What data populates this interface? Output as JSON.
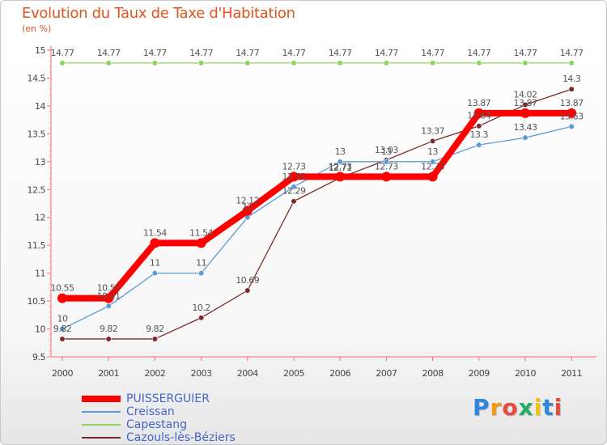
{
  "title": "Evolution du Taux de Taxe d'Habitation",
  "subtitle": "(en %)",
  "chart_data": {
    "type": "line",
    "x": [
      "2000",
      "2001",
      "2002",
      "2003",
      "2004",
      "2005",
      "2006",
      "2007",
      "2008",
      "2009",
      "2010",
      "2011"
    ],
    "ylim": [
      9.5,
      15
    ],
    "yticks": [
      "9.5",
      "10",
      "10.5",
      "11",
      "11.5",
      "12",
      "12.5",
      "13",
      "13.5",
      "14",
      "14.5",
      "15"
    ],
    "grid": false,
    "legend_position": "bottom-left",
    "series": [
      {
        "name": "PUISSERGUIER",
        "color": "#ff0000",
        "values": [
          10.55,
          10.55,
          11.54,
          11.54,
          12.12,
          12.73,
          12.73,
          12.73,
          12.73,
          13.87,
          13.87,
          13.87
        ],
        "labels": [
          "10.55",
          "10.55",
          "11.54",
          "11.54",
          "12.12",
          "12.73",
          "12.73",
          "12.73",
          "12.73",
          "13.87",
          "13.87",
          "13.87"
        ]
      },
      {
        "name": "Creissan",
        "color": "#5b9bd5",
        "values": [
          10,
          10.41,
          11,
          11,
          12,
          12.55,
          13,
          13,
          13,
          13.3,
          13.43,
          13.63
        ],
        "labels": [
          "10",
          "10.41",
          "11",
          "11",
          "12",
          "12.55",
          "13",
          "13",
          "13",
          "13.3",
          "13.43",
          "13.63"
        ]
      },
      {
        "name": "Capestang",
        "color": "#8dd35f",
        "values": [
          14.77,
          14.77,
          14.77,
          14.77,
          14.77,
          14.77,
          14.77,
          14.77,
          14.77,
          14.77,
          14.77,
          14.77
        ],
        "labels": [
          "14.77",
          "14.77",
          "14.77",
          "14.77",
          "14.77",
          "14.77",
          "14.77",
          "14.77",
          "14.77",
          "14.77",
          "14.77",
          "14.77"
        ]
      },
      {
        "name": "Cazouls-lès-Béziers",
        "color": "#7a2a2a",
        "values": [
          9.82,
          9.82,
          9.82,
          10.2,
          10.69,
          12.29,
          12.71,
          13.03,
          13.37,
          13.64,
          14.02,
          14.3
        ],
        "labels": [
          "9.82",
          "9.82",
          "9.82",
          "10.2",
          "10.69",
          "12.29",
          "12.71",
          "13.03",
          "13.37",
          "13.64",
          "14.02",
          "14.3"
        ]
      }
    ]
  },
  "legend": {
    "items": [
      {
        "label": "PUISSERGUIER",
        "color": "#ff0000"
      },
      {
        "label": "Creissan",
        "color": "#5b9bd5"
      },
      {
        "label": "Capestang",
        "color": "#8dd35f"
      },
      {
        "label": "Cazouls-lès-Béziers",
        "color": "#7a2a2a"
      }
    ]
  },
  "logo": {
    "text": "Proxiti",
    "letters": [
      "P",
      "r",
      "o",
      "x",
      "i",
      "t",
      "i"
    ],
    "colors": [
      "#2e86de",
      "#f39c12",
      "#e74c3c",
      "#27ae60",
      "#f1c40f",
      "#2e86de",
      "#e74c3c"
    ]
  }
}
